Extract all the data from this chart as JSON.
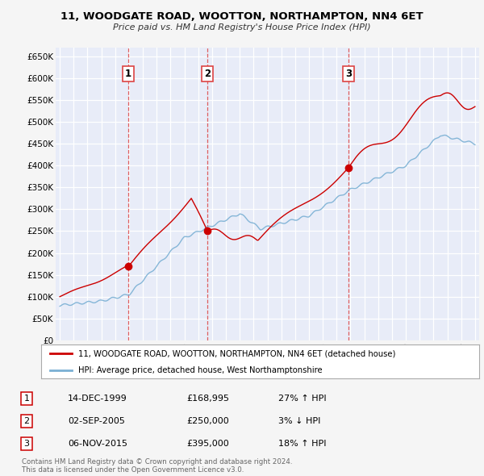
{
  "title": "11, WOODGATE ROAD, WOOTTON, NORTHAMPTON, NN4 6ET",
  "subtitle": "Price paid vs. HM Land Registry's House Price Index (HPI)",
  "ylim": [
    0,
    670000
  ],
  "yticks": [
    0,
    50000,
    100000,
    150000,
    200000,
    250000,
    300000,
    350000,
    400000,
    450000,
    500000,
    550000,
    600000,
    650000
  ],
  "ytick_labels": [
    "£0",
    "£50K",
    "£100K",
    "£150K",
    "£200K",
    "£250K",
    "£300K",
    "£350K",
    "£400K",
    "£450K",
    "£500K",
    "£550K",
    "£600K",
    "£650K"
  ],
  "xlim_start": 1994.7,
  "xlim_end": 2025.3,
  "background_color": "#f5f5f5",
  "plot_bg_color": "#e8ecf8",
  "grid_color": "#ffffff",
  "red_color": "#cc0000",
  "blue_color": "#7ab0d4",
  "sale_dates": [
    1999.96,
    2005.67,
    2015.85
  ],
  "sale_prices": [
    168995,
    250000,
    395000
  ],
  "sale_labels": [
    "1",
    "2",
    "3"
  ],
  "dashed_line_color": "#dd4444",
  "legend_entries": [
    "11, WOODGATE ROAD, WOOTTON, NORTHAMPTON, NN4 6ET (detached house)",
    "HPI: Average price, detached house, West Northamptonshire"
  ],
  "table_rows": [
    [
      "1",
      "14-DEC-1999",
      "£168,995",
      "27% ↑ HPI"
    ],
    [
      "2",
      "02-SEP-2005",
      "£250,000",
      "3% ↓ HPI"
    ],
    [
      "3",
      "06-NOV-2015",
      "£395,000",
      "18% ↑ HPI"
    ]
  ],
  "footer": "Contains HM Land Registry data © Crown copyright and database right 2024.\nThis data is licensed under the Open Government Licence v3.0."
}
